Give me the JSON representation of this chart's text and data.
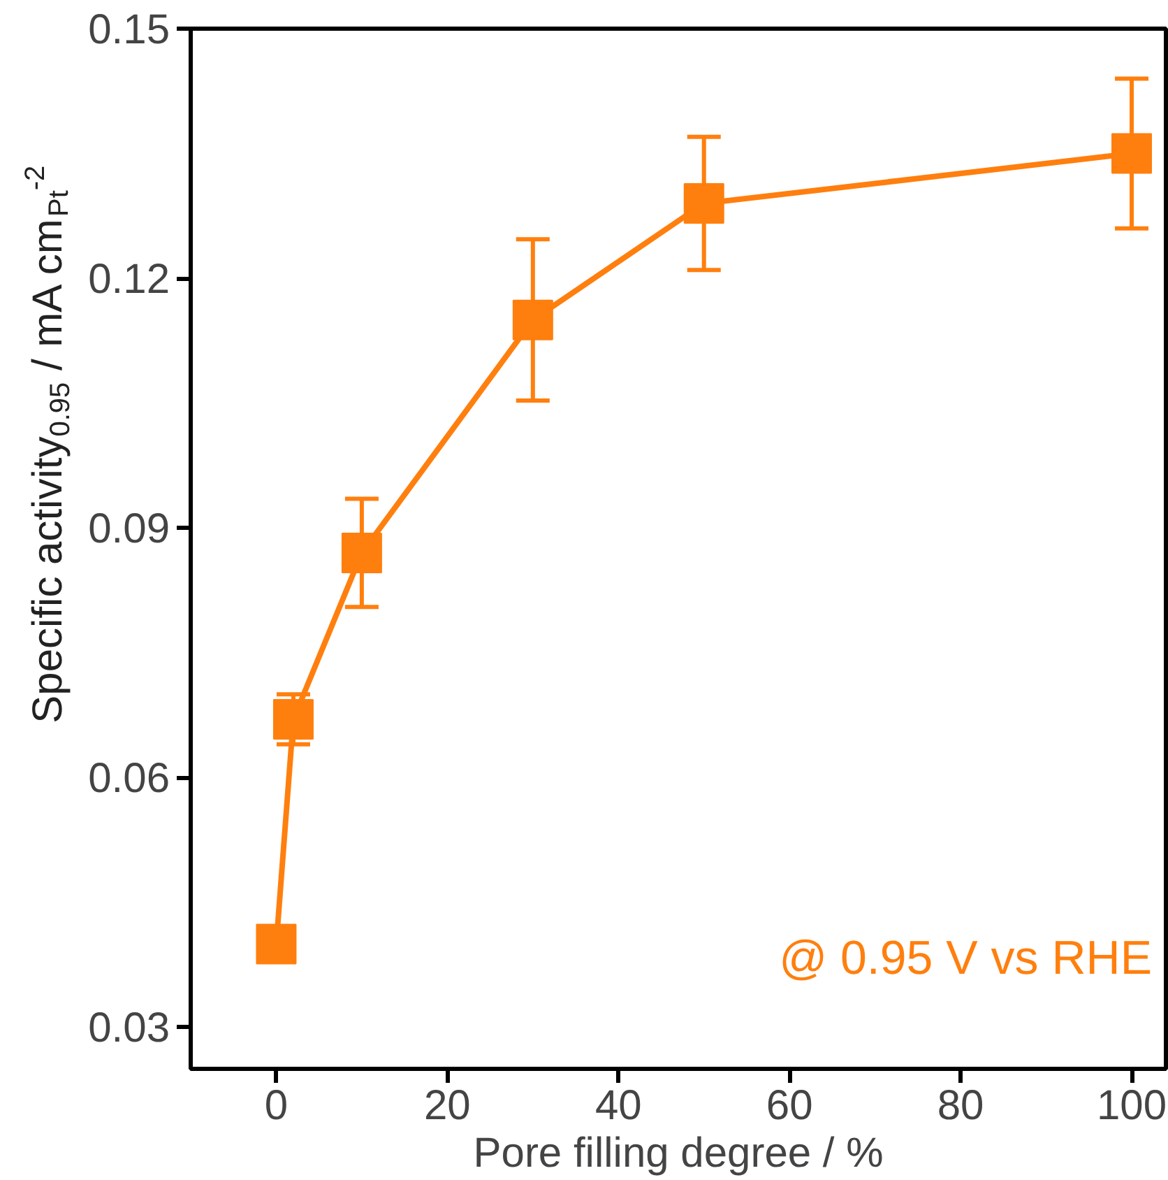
{
  "chart_data": {
    "type": "line",
    "xlabel": "Pore filling degree / %",
    "ylabel": "Specific activity$_{0.95}$ / mA cm$_{Pt}$$^{-2}$",
    "x": [
      0,
      2,
      10,
      30,
      50,
      100
    ],
    "series": [
      {
        "color": "#ff7f0e",
        "values": [
          0.04,
          0.067,
          0.087,
          0.115,
          0.129,
          0.135
        ],
        "errors": [
          0.002,
          0.003,
          0.0065,
          0.0097,
          0.008,
          0.009
        ]
      }
    ],
    "xlim": [
      -10,
      104
    ],
    "ylim": [
      0.025,
      0.15
    ],
    "xticks": [
      0,
      20,
      40,
      60,
      80,
      100
    ],
    "yticks": [
      {
        "value": 0.03,
        "label": "0.03"
      },
      {
        "value": 0.06,
        "label": "0.06"
      },
      {
        "value": 0.09,
        "label": "0.09"
      },
      {
        "value": 0.12,
        "label": "0.12"
      },
      {
        "value": 0.15,
        "label": "0.15"
      }
    ],
    "annotations": [
      "@ 0.95 V vs RHE"
    ],
    "marker": "square",
    "line_style": "solid",
    "grid": false
  }
}
